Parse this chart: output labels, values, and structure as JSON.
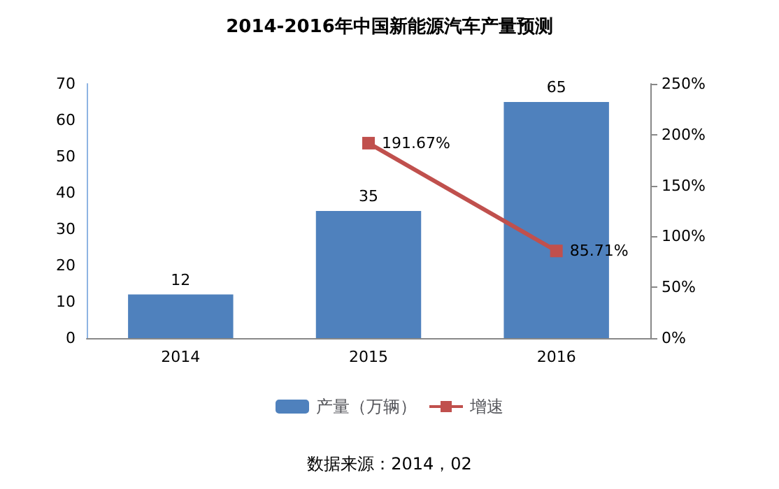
{
  "chart_data": {
    "type": "bar",
    "title": "2014-2016年中国新能源汽车产量预测",
    "categories": [
      "2014",
      "2015",
      "2016"
    ],
    "series": [
      {
        "name": "产量（万辆）",
        "color": "#4f81bd",
        "values": [
          12,
          35,
          65
        ],
        "value_labels": [
          "12",
          "35",
          "65"
        ]
      },
      {
        "name": "增速",
        "type": "line",
        "axis": "y2",
        "color": "#c0504d",
        "values": [
          null,
          191.67,
          85.71
        ],
        "value_labels": [
          null,
          "191.67%",
          "85.71%"
        ],
        "marker": "square"
      }
    ],
    "ylim": [
      0,
      70
    ],
    "yticks": [
      0,
      10,
      20,
      30,
      40,
      50,
      60,
      70
    ],
    "y2lim": [
      0,
      250
    ],
    "y2ticks": [
      {
        "value": 0,
        "label": "0%"
      },
      {
        "value": 50,
        "label": "50%"
      },
      {
        "value": 100,
        "label": "100%"
      },
      {
        "value": 150,
        "label": "150%"
      },
      {
        "value": 200,
        "label": "200%"
      },
      {
        "value": 250,
        "label": "250%"
      }
    ],
    "grid": false,
    "legend": "bottom",
    "annotations": [
      "数据来源：2014，02"
    ]
  }
}
